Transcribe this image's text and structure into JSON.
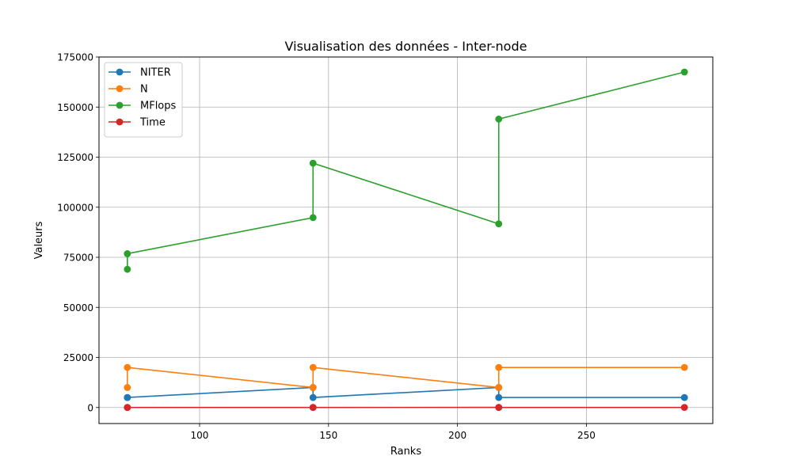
{
  "chart_data": {
    "type": "line",
    "title": "Visualisation des données - Inter-node",
    "xlabel": "Ranks",
    "ylabel": "Valeurs",
    "xlim": [
      61,
      299
    ],
    "ylim": [
      -8000,
      175000
    ],
    "xticks": [
      100,
      150,
      200,
      250
    ],
    "yticks": [
      0,
      25000,
      50000,
      75000,
      100000,
      125000,
      150000,
      175000
    ],
    "grid": true,
    "legend_position": "top-left",
    "x": [
      72,
      72,
      144,
      144,
      216,
      216,
      288
    ],
    "series": [
      {
        "name": "NITER",
        "color": "#1f77b4",
        "values": [
          5000,
          5000,
          10000,
          5000,
          10000,
          5000,
          5000
        ]
      },
      {
        "name": "N",
        "color": "#ff7f0e",
        "values": [
          10000,
          20000,
          10000,
          20000,
          10000,
          20000,
          20000
        ]
      },
      {
        "name": "MFlops",
        "color": "#2ca02c",
        "values": [
          69000,
          76800,
          94800,
          122000,
          91700,
          144000,
          167500
        ]
      },
      {
        "name": "Time",
        "color": "#d62728",
        "values": [
          50,
          20,
          30,
          40,
          60,
          30,
          40
        ]
      }
    ]
  }
}
